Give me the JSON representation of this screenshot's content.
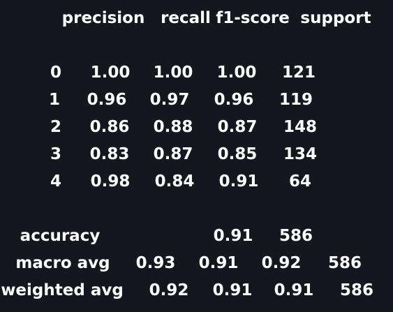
{
  "headers": [
    "precision",
    "recall",
    "f1-score",
    "support"
  ],
  "class_rows": [
    {
      "label": "0",
      "precision": "1.00",
      "recall": "1.00",
      "f1_score": "1.00",
      "support": "121"
    },
    {
      "label": "1",
      "precision": "0.96",
      "recall": "0.97",
      "f1_score": "0.96",
      "support": "119"
    },
    {
      "label": "2",
      "precision": "0.86",
      "recall": "0.88",
      "f1_score": "0.87",
      "support": "148"
    },
    {
      "label": "3",
      "precision": "0.83",
      "recall": "0.87",
      "f1_score": "0.85",
      "support": "134"
    },
    {
      "label": "4",
      "precision": "0.98",
      "recall": "0.84",
      "f1_score": "0.91",
      "support": "64"
    }
  ],
  "accuracy": {
    "label": "accuracy",
    "f1_score": "0.91",
    "support": "586"
  },
  "macro_avg": {
    "label": "macro avg",
    "precision": "0.93",
    "recall": "0.91",
    "f1_score": "0.92",
    "support": "586"
  },
  "weighted_avg": {
    "label": "weighted avg",
    "precision": "0.92",
    "recall": "0.91",
    "f1_score": "0.91",
    "support": "586"
  }
}
